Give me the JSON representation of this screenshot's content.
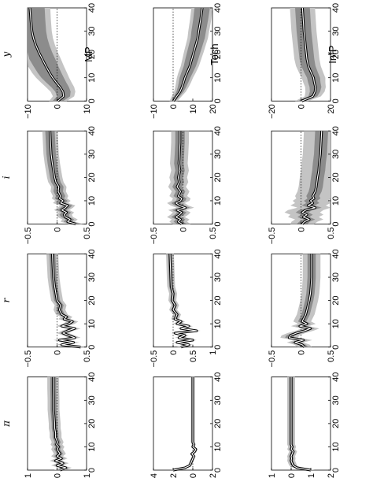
{
  "chart_data": {
    "type": "line",
    "orientation": "rotated-90-ccw",
    "grid": false,
    "columns": [
      "MP",
      "Tech",
      "InfP"
    ],
    "rows": [
      "y",
      "i",
      "r",
      "π"
    ],
    "x_range": [
      0,
      40
    ],
    "x_ticks": [
      "0",
      "10",
      "20",
      "30",
      "40"
    ],
    "panels": [
      {
        "column": "MP",
        "row": "y",
        "ylim": [
          -10,
          10
        ],
        "ytick_labels": [
          "−10",
          "0",
          "10"
        ],
        "x": [
          0,
          2,
          4,
          6,
          8,
          10,
          12,
          15,
          18,
          21,
          24,
          27,
          30,
          35,
          40
        ],
        "median": [
          0.3,
          2.2,
          2.0,
          1.0,
          -0.3,
          -1.5,
          -2.5,
          -3.8,
          -5.0,
          -6.2,
          -7.2,
          -8.0,
          -8.5,
          -8.9,
          -9.2
        ],
        "band_inner": [
          1.8,
          2.2,
          2.6,
          3.0,
          3.4,
          3.8,
          4.0,
          4.2,
          4.4,
          4.5,
          4.6,
          4.7,
          4.8,
          4.9,
          5.0
        ],
        "band_outer": [
          3.0,
          3.6,
          4.2,
          4.8,
          5.2,
          5.6,
          5.9,
          6.1,
          6.3,
          6.4,
          6.5,
          6.6,
          6.7,
          6.8,
          6.9
        ]
      },
      {
        "column": "Tech",
        "row": "y",
        "ylim": [
          -10,
          20
        ],
        "ytick_labels": [
          "−10",
          "0",
          "10",
          "20"
        ],
        "x": [
          0,
          2,
          4,
          6,
          8,
          10,
          12,
          15,
          18,
          21,
          24,
          27,
          30,
          35,
          40
        ],
        "median": [
          0.2,
          1.8,
          3.5,
          4.5,
          5.3,
          6.0,
          7.0,
          8.5,
          9.5,
          10.5,
          11.5,
          12.5,
          13.0,
          14.0,
          14.8
        ],
        "band_inner": [
          1.0,
          1.4,
          1.8,
          2.1,
          2.4,
          2.7,
          2.9,
          3.1,
          3.3,
          3.4,
          3.5,
          3.6,
          3.7,
          3.8,
          3.9
        ],
        "band_outer": [
          2.0,
          2.5,
          3.0,
          3.4,
          3.8,
          4.1,
          4.4,
          4.6,
          4.8,
          5.0,
          5.1,
          5.2,
          5.3,
          5.4,
          5.5
        ]
      },
      {
        "column": "InfP",
        "row": "y",
        "ylim": [
          -20,
          20
        ],
        "ytick_labels": [
          "−20",
          "0",
          "20"
        ],
        "x": [
          0,
          2,
          4,
          6,
          8,
          10,
          12,
          15,
          18,
          21,
          24,
          27,
          30,
          35,
          40
        ],
        "median": [
          0.5,
          8.0,
          9.5,
          9.8,
          9.0,
          8.5,
          7.0,
          5.0,
          4.0,
          3.5,
          3.0,
          2.5,
          2.0,
          1.5,
          1.0
        ],
        "band_inner": [
          2.5,
          3.0,
          3.5,
          4.0,
          4.2,
          4.4,
          4.6,
          4.8,
          5.0,
          5.0,
          5.0,
          5.0,
          5.0,
          5.0,
          5.0
        ],
        "band_outer": [
          4.5,
          5.5,
          6.5,
          7.0,
          7.5,
          8.0,
          8.2,
          8.4,
          8.5,
          8.5,
          8.5,
          8.5,
          8.5,
          8.5,
          8.5
        ]
      },
      {
        "column": "MP",
        "row": "i",
        "ylim": [
          -0.5,
          0.5
        ],
        "ytick_labels": [
          "−0.5",
          "0",
          "0.5"
        ],
        "x": [
          0,
          1,
          2,
          3,
          4,
          5,
          6,
          7,
          8,
          9,
          10,
          11,
          12,
          14,
          16,
          18,
          20,
          23,
          26,
          30,
          35,
          40
        ],
        "median": [
          0.32,
          0.18,
          0.22,
          0.14,
          0.12,
          0.16,
          0.08,
          0.14,
          0.18,
          0.06,
          0.1,
          0.04,
          0.06,
          0.02,
          0.03,
          -0.02,
          -0.04,
          -0.06,
          -0.08,
          -0.1,
          -0.11,
          -0.12
        ],
        "band_inner": [
          0.07,
          0.07,
          0.07,
          0.07,
          0.08,
          0.08,
          0.08,
          0.08,
          0.08,
          0.08,
          0.08,
          0.08,
          0.08,
          0.08,
          0.08,
          0.08,
          0.08,
          0.08,
          0.08,
          0.08,
          0.08,
          0.08
        ],
        "band_outer": [
          0.12,
          0.12,
          0.13,
          0.13,
          0.13,
          0.13,
          0.13,
          0.13,
          0.13,
          0.13,
          0.13,
          0.13,
          0.13,
          0.13,
          0.13,
          0.13,
          0.13,
          0.13,
          0.13,
          0.13,
          0.13,
          0.13
        ]
      },
      {
        "column": "Tech",
        "row": "i",
        "ylim": [
          -0.5,
          0.5
        ],
        "ytick_labels": [
          "−0.5",
          "0",
          "0.5"
        ],
        "x": [
          0,
          1,
          2,
          3,
          4,
          5,
          6,
          7,
          8,
          9,
          10,
          11,
          12,
          14,
          16,
          18,
          20,
          23,
          26,
          30,
          35,
          40
        ],
        "median": [
          -0.02,
          -0.08,
          -0.04,
          -0.12,
          -0.06,
          -0.02,
          -0.1,
          0.04,
          -0.06,
          -0.12,
          -0.04,
          -0.02,
          -0.08,
          -0.04,
          -0.1,
          -0.06,
          -0.08,
          -0.05,
          -0.07,
          -0.06,
          -0.05,
          -0.05
        ],
        "band_inner": [
          0.08,
          0.08,
          0.08,
          0.08,
          0.08,
          0.08,
          0.08,
          0.08,
          0.08,
          0.08,
          0.08,
          0.08,
          0.08,
          0.08,
          0.08,
          0.08,
          0.08,
          0.08,
          0.08,
          0.08,
          0.08,
          0.08
        ],
        "band_outer": [
          0.15,
          0.15,
          0.15,
          0.15,
          0.15,
          0.15,
          0.15,
          0.15,
          0.15,
          0.15,
          0.15,
          0.15,
          0.15,
          0.15,
          0.15,
          0.15,
          0.15,
          0.15,
          0.15,
          0.15,
          0.15,
          0.15
        ]
      },
      {
        "column": "InfP",
        "row": "i",
        "ylim": [
          -0.5,
          0.5
        ],
        "ytick_labels": [
          "−0.5",
          "0",
          "0.5"
        ],
        "x": [
          0,
          1,
          2,
          3,
          4,
          5,
          6,
          7,
          8,
          9,
          10,
          11,
          12,
          14,
          16,
          18,
          20,
          23,
          26,
          30,
          35,
          40
        ],
        "median": [
          0.02,
          0.06,
          0.14,
          0.04,
          0.1,
          0.02,
          0.08,
          0.24,
          0.12,
          0.2,
          0.16,
          0.22,
          0.2,
          0.24,
          0.26,
          0.27,
          0.28,
          0.3,
          0.31,
          0.33,
          0.34,
          0.35
        ],
        "band_inner": [
          0.09,
          0.09,
          0.1,
          0.1,
          0.1,
          0.11,
          0.11,
          0.11,
          0.11,
          0.11,
          0.11,
          0.11,
          0.11,
          0.11,
          0.11,
          0.11,
          0.11,
          0.11,
          0.11,
          0.11,
          0.11,
          0.11
        ],
        "band_outer": [
          0.2,
          0.22,
          0.24,
          0.26,
          0.28,
          0.3,
          0.3,
          0.3,
          0.3,
          0.3,
          0.3,
          0.3,
          0.3,
          0.3,
          0.3,
          0.3,
          0.3,
          0.3,
          0.3,
          0.3,
          0.3,
          0.3
        ]
      },
      {
        "column": "MP",
        "row": "r",
        "ylim": [
          -0.5,
          0.5
        ],
        "ytick_labels": [
          "−0.5",
          "0",
          "0.5"
        ],
        "x": [
          0,
          1,
          2,
          3,
          4,
          5,
          6,
          7,
          8,
          9,
          10,
          11,
          12,
          13,
          14,
          16,
          18,
          20,
          23,
          26,
          30,
          35,
          40
        ],
        "median": [
          0.4,
          0.08,
          0.28,
          0.04,
          0.3,
          0.2,
          0.1,
          0.18,
          0.3,
          0.08,
          0.2,
          0.26,
          0.12,
          0.16,
          0.08,
          0.04,
          0.06,
          0.0,
          -0.02,
          -0.04,
          -0.06,
          -0.07,
          -0.08
        ],
        "band_inner": [
          0.05,
          0.05,
          0.05,
          0.05,
          0.05,
          0.05,
          0.05,
          0.05,
          0.05,
          0.05,
          0.05,
          0.05,
          0.05,
          0.05,
          0.05,
          0.05,
          0.05,
          0.05,
          0.05,
          0.05,
          0.05,
          0.05,
          0.05
        ],
        "band_outer": [
          0.1,
          0.1,
          0.1,
          0.1,
          0.1,
          0.1,
          0.1,
          0.1,
          0.1,
          0.1,
          0.1,
          0.1,
          0.1,
          0.1,
          0.1,
          0.1,
          0.1,
          0.1,
          0.1,
          0.1,
          0.1,
          0.1,
          0.1
        ]
      },
      {
        "column": "Tech",
        "row": "r",
        "ylim": [
          -0.5,
          1
        ],
        "ytick_labels": [
          "−0.5",
          "0",
          "0.5",
          "1"
        ],
        "x": [
          0,
          1,
          2,
          3,
          4,
          5,
          6,
          7,
          8,
          9,
          10,
          11,
          12,
          14,
          16,
          18,
          20,
          23,
          26,
          30,
          35,
          40
        ],
        "median": [
          0.2,
          0.4,
          0.1,
          0.5,
          0.15,
          0.3,
          0.05,
          0.6,
          0.2,
          0.4,
          0.1,
          0.2,
          0.05,
          0.1,
          0.0,
          0.05,
          -0.02,
          0.0,
          -0.05,
          -0.06,
          -0.07,
          -0.08
        ],
        "band_inner": [
          0.05,
          0.05,
          0.05,
          0.05,
          0.05,
          0.05,
          0.05,
          0.05,
          0.05,
          0.05,
          0.05,
          0.05,
          0.05,
          0.05,
          0.05,
          0.05,
          0.05,
          0.05,
          0.05,
          0.05,
          0.05,
          0.05
        ],
        "band_outer": [
          0.1,
          0.1,
          0.1,
          0.1,
          0.1,
          0.1,
          0.1,
          0.1,
          0.1,
          0.1,
          0.1,
          0.1,
          0.1,
          0.1,
          0.1,
          0.1,
          0.1,
          0.1,
          0.1,
          0.1,
          0.1,
          0.1
        ]
      },
      {
        "column": "InfP",
        "row": "r",
        "ylim": [
          -0.5,
          0.5
        ],
        "ytick_labels": [
          "−0.5",
          "0",
          "0.5"
        ],
        "x": [
          0,
          1,
          2,
          3,
          4,
          5,
          6,
          7,
          8,
          9,
          10,
          11,
          12,
          14,
          16,
          18,
          20,
          23,
          26,
          30,
          35,
          40
        ],
        "median": [
          0.06,
          0.02,
          -0.1,
          0.04,
          -0.2,
          -0.18,
          -0.08,
          0.06,
          0.16,
          -0.02,
          0.1,
          0.02,
          0.04,
          0.08,
          0.1,
          0.12,
          0.14,
          0.16,
          0.17,
          0.18,
          0.18,
          0.18
        ],
        "band_inner": [
          0.06,
          0.06,
          0.07,
          0.07,
          0.07,
          0.07,
          0.07,
          0.07,
          0.07,
          0.07,
          0.07,
          0.07,
          0.07,
          0.07,
          0.07,
          0.07,
          0.07,
          0.07,
          0.07,
          0.07,
          0.07,
          0.07
        ],
        "band_outer": [
          0.12,
          0.13,
          0.14,
          0.15,
          0.15,
          0.15,
          0.15,
          0.15,
          0.15,
          0.15,
          0.15,
          0.15,
          0.15,
          0.15,
          0.15,
          0.15,
          0.15,
          0.15,
          0.15,
          0.15,
          0.15,
          0.15
        ]
      },
      {
        "column": "MP",
        "row": "π",
        "ylim": [
          -1,
          1
        ],
        "ytick_labels": [
          "−1",
          "0",
          "1"
        ],
        "x": [
          0,
          1,
          2,
          3,
          4,
          5,
          6,
          7,
          8,
          9,
          10,
          11,
          12,
          14,
          16,
          18,
          20,
          23,
          26,
          30,
          35,
          40
        ],
        "median": [
          0.1,
          0.3,
          0.0,
          0.2,
          -0.05,
          0.15,
          0.0,
          0.1,
          0.05,
          0.0,
          0.05,
          -0.02,
          0.02,
          -0.05,
          -0.05,
          -0.08,
          -0.08,
          -0.1,
          -0.12,
          -0.12,
          -0.13,
          -0.13
        ],
        "band_inner": [
          0.1,
          0.1,
          0.1,
          0.1,
          0.1,
          0.1,
          0.1,
          0.1,
          0.1,
          0.1,
          0.1,
          0.1,
          0.1,
          0.1,
          0.1,
          0.1,
          0.1,
          0.1,
          0.1,
          0.1,
          0.1,
          0.1
        ],
        "band_outer": [
          0.2,
          0.2,
          0.2,
          0.2,
          0.2,
          0.2,
          0.2,
          0.2,
          0.2,
          0.2,
          0.2,
          0.2,
          0.2,
          0.2,
          0.2,
          0.2,
          0.2,
          0.2,
          0.2,
          0.2,
          0.2,
          0.2
        ]
      },
      {
        "column": "Tech",
        "row": "π",
        "ylim": [
          -4,
          2
        ],
        "ytick_labels": [
          "−4",
          "−2",
          "0",
          "2"
        ],
        "x": [
          0,
          1,
          2,
          3,
          4,
          5,
          6,
          7,
          8,
          9,
          10,
          11,
          12,
          14,
          16,
          18,
          20,
          23,
          26,
          30,
          35,
          40
        ],
        "median": [
          -2.0,
          -0.8,
          -0.3,
          -0.2,
          -0.1,
          0.0,
          0.1,
          -0.1,
          0.2,
          0.3,
          0.0,
          0.1,
          0.0,
          0.0,
          0.0,
          0.0,
          0.0,
          0.0,
          0.0,
          0.0,
          0.0,
          0.0
        ],
        "band_inner": [
          0.1,
          0.1,
          0.1,
          0.1,
          0.1,
          0.1,
          0.1,
          0.1,
          0.1,
          0.1,
          0.1,
          0.1,
          0.1,
          0.1,
          0.1,
          0.1,
          0.1,
          0.1,
          0.1,
          0.1,
          0.1,
          0.1
        ],
        "band_outer": [
          0.2,
          0.2,
          0.2,
          0.2,
          0.2,
          0.2,
          0.2,
          0.2,
          0.2,
          0.2,
          0.2,
          0.2,
          0.2,
          0.2,
          0.2,
          0.2,
          0.2,
          0.2,
          0.2,
          0.2,
          0.2,
          0.2
        ]
      },
      {
        "column": "InfP",
        "row": "π",
        "ylim": [
          -1,
          2
        ],
        "ytick_labels": [
          "−1",
          "0",
          "1",
          "2"
        ],
        "x": [
          0,
          1,
          2,
          3,
          4,
          5,
          6,
          7,
          8,
          9,
          10,
          11,
          12,
          14,
          16,
          18,
          20,
          23,
          26,
          30,
          35,
          40
        ],
        "median": [
          1.0,
          0.3,
          0.1,
          0.05,
          0.0,
          0.02,
          0.0,
          0.05,
          0.1,
          0.0,
          0.05,
          0.0,
          0.0,
          0.0,
          0.0,
          0.0,
          0.0,
          0.0,
          0.0,
          0.0,
          0.0,
          0.0
        ],
        "band_inner": [
          0.1,
          0.1,
          0.1,
          0.1,
          0.1,
          0.1,
          0.1,
          0.1,
          0.1,
          0.1,
          0.1,
          0.1,
          0.1,
          0.1,
          0.1,
          0.1,
          0.1,
          0.1,
          0.1,
          0.1,
          0.1,
          0.1
        ],
        "band_outer": [
          0.2,
          0.2,
          0.2,
          0.2,
          0.2,
          0.2,
          0.2,
          0.2,
          0.2,
          0.2,
          0.2,
          0.2,
          0.2,
          0.2,
          0.2,
          0.2,
          0.2,
          0.2,
          0.2,
          0.2,
          0.2,
          0.2
        ]
      }
    ],
    "colors": {
      "band_outer": "#c4c4c4",
      "band_inner": "#8c8c8c",
      "median_outline": "#000000",
      "median_core": "#ffffff",
      "zero_line": "#000000"
    }
  }
}
